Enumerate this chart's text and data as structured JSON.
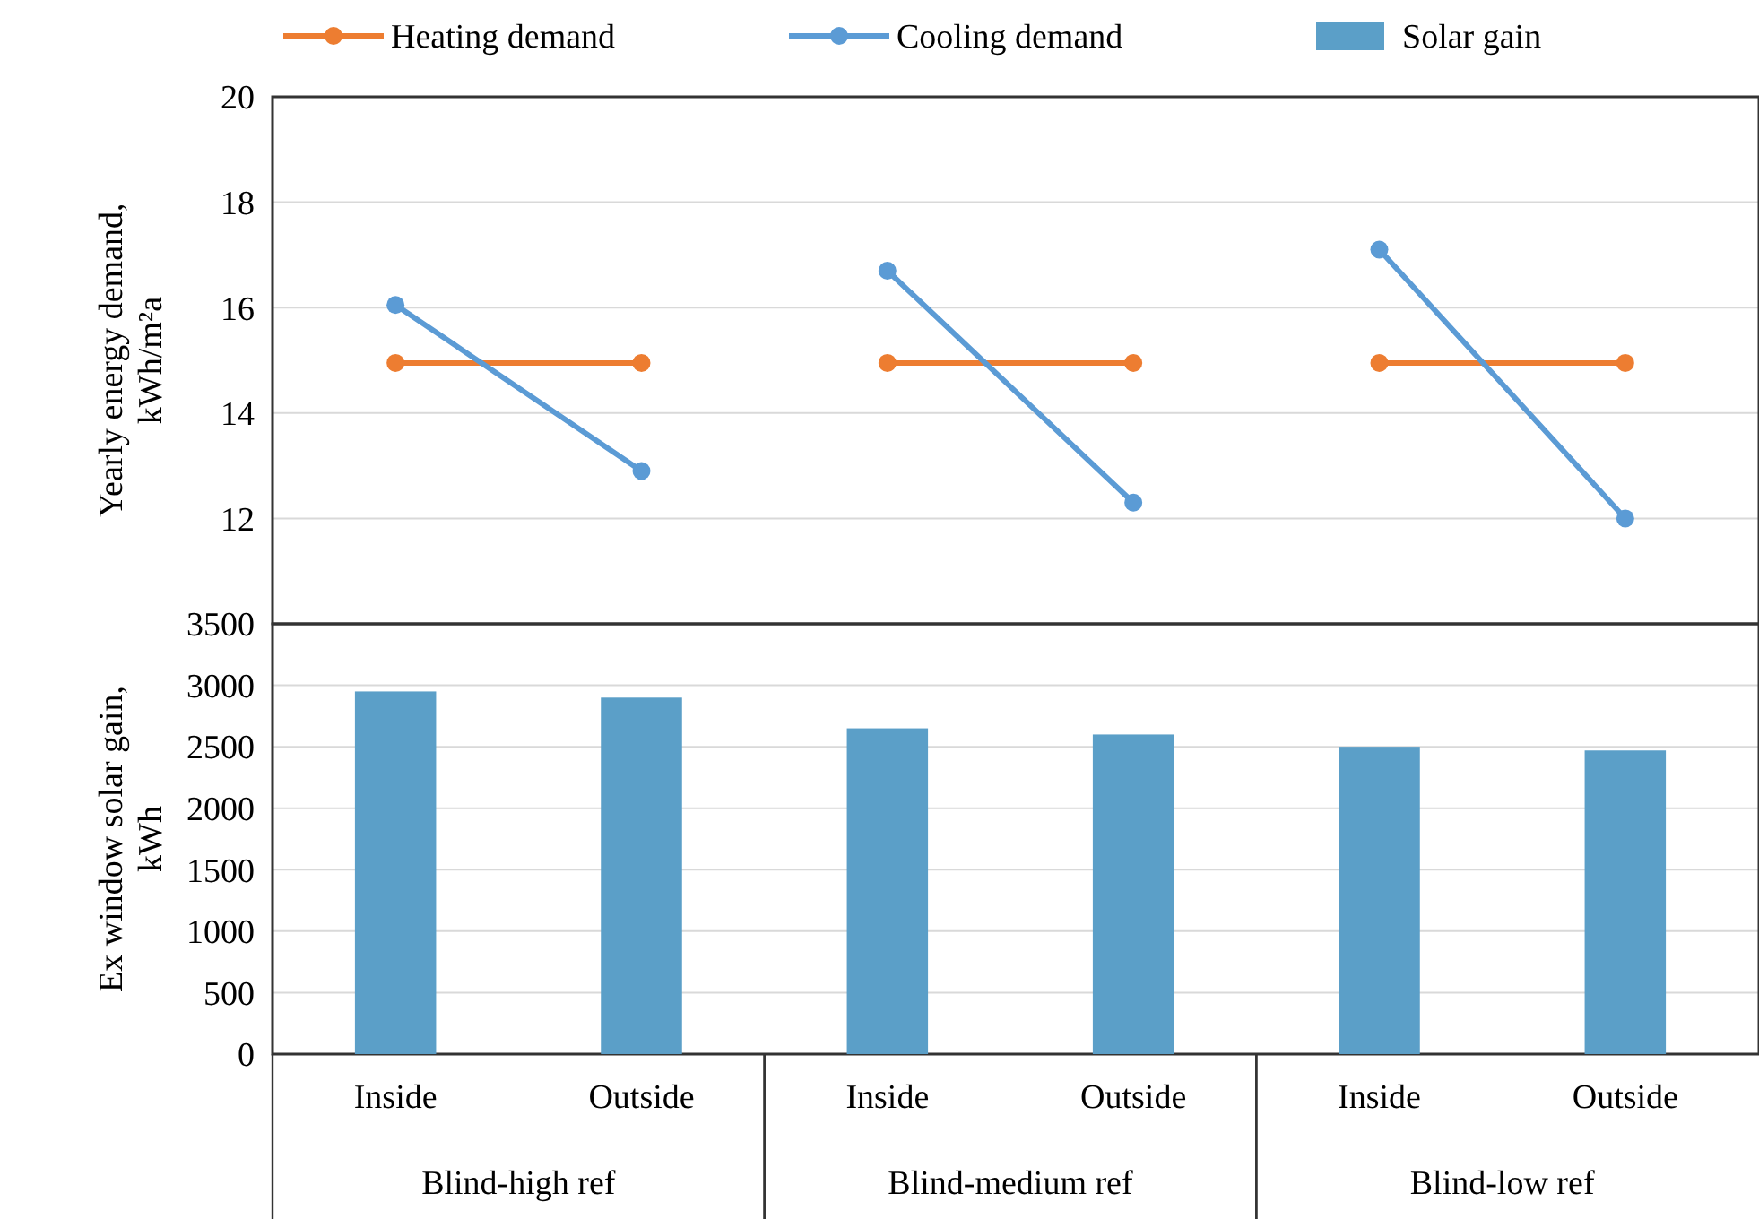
{
  "chart_data": [
    {
      "type": "line",
      "ylabel": "Yearly energy demand, kWh/m²a",
      "categories": [
        null,
        null,
        null,
        null,
        null,
        null
      ],
      "ylim": [
        10,
        20
      ],
      "yticks": [
        12,
        14,
        16,
        18,
        20
      ],
      "grid": "y",
      "legend": "top",
      "tick_labels": "y",
      "marker": "circle",
      "series": [
        {
          "name": "Heating demand",
          "color": "#ed7d31",
          "values": [
            14.95,
            14.95,
            14.95,
            14.95,
            14.95,
            14.95
          ]
        },
        {
          "name": "Cooling demand",
          "color": "#5b9bd5",
          "values": [
            16.05,
            12.9,
            16.7,
            12.3,
            17.1,
            12.0
          ]
        }
      ]
    },
    {
      "type": "bar",
      "ylabel": "Ex window solar gain, kWh",
      "categories": [
        "Inside",
        "Outside",
        "Inside",
        "Outside",
        "Inside",
        "Outside"
      ],
      "ylim": [
        0,
        3500
      ],
      "yticks": [
        0,
        500,
        1000,
        1500,
        2000,
        2500,
        3000,
        3500
      ],
      "grid": "y",
      "legend": "top",
      "series": [
        {
          "name": "Solar gain",
          "color": "#5b9fc8",
          "values": [
            2950,
            2900,
            2650,
            2600,
            2500,
            2470
          ]
        }
      ],
      "annotations": [
        "Blind-high ref",
        "Blind-medium ref",
        "Blind-low ref"
      ]
    }
  ]
}
